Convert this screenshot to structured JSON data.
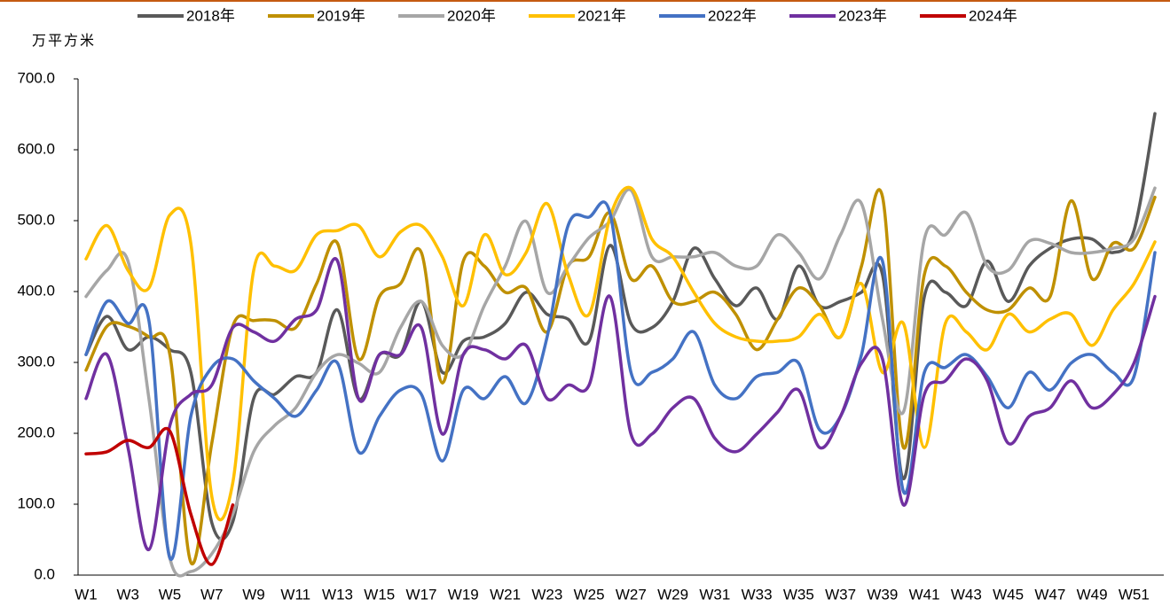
{
  "chart_data": {
    "type": "line",
    "y_axis_label": "万平方米",
    "categories": [
      "W1",
      null,
      "W3",
      null,
      "W5",
      null,
      "W7",
      null,
      "W9",
      null,
      "W11",
      null,
      "W13",
      null,
      "W15",
      null,
      "W17",
      null,
      "W19",
      null,
      "W21",
      null,
      "W23",
      null,
      "W25",
      null,
      "W27",
      null,
      "W29",
      null,
      "W31",
      null,
      "W33",
      null,
      "W35",
      null,
      "W37",
      null,
      "W39",
      null,
      "W41",
      null,
      "W43",
      null,
      "W45",
      null,
      "W47",
      null,
      "W49",
      null,
      "W51",
      null
    ],
    "series": [
      {
        "name": "2018年",
        "color": "#595959",
        "values": [
          311,
          365,
          318,
          336,
          318,
          286,
          74,
          75,
          249,
          255,
          280,
          286,
          374,
          249,
          311,
          311,
          386,
          286,
          330,
          336,
          355,
          399,
          368,
          361,
          330,
          465,
          355,
          349,
          386,
          461,
          418,
          380,
          405,
          361,
          436,
          380,
          386,
          399,
          424,
          136,
          393,
          399,
          380,
          443,
          386,
          436,
          461,
          474,
          474,
          455,
          486,
          651
        ]
      },
      {
        "name": "2019年",
        "color": "#bf9000",
        "values": [
          289,
          351,
          351,
          336,
          311,
          18,
          186,
          351,
          359,
          359,
          349,
          411,
          468,
          305,
          393,
          411,
          455,
          271,
          443,
          436,
          399,
          405,
          343,
          436,
          449,
          511,
          418,
          436,
          386,
          386,
          399,
          368,
          318,
          361,
          405,
          380,
          336,
          436,
          534,
          180,
          424,
          436,
          399,
          374,
          374,
          405,
          393,
          528,
          418,
          468,
          461,
          533
        ]
      },
      {
        "name": "2020年",
        "color": "#a6a6a6",
        "values": [
          393,
          430,
          443,
          249,
          24,
          5,
          30,
          86,
          174,
          211,
          236,
          286,
          311,
          299,
          286,
          349,
          386,
          324,
          311,
          380,
          436,
          499,
          399,
          436,
          476,
          499,
          543,
          449,
          449,
          449,
          455,
          436,
          436,
          480,
          455,
          418,
          480,
          524,
          361,
          230,
          474,
          480,
          511,
          436,
          430,
          471,
          468,
          455,
          455,
          461,
          474,
          546
        ]
      },
      {
        "name": "2021年",
        "color": "#ffc000",
        "values": [
          446,
          493,
          430,
          405,
          508,
          468,
          111,
          130,
          430,
          436,
          430,
          480,
          486,
          493,
          449,
          484,
          493,
          449,
          380,
          480,
          424,
          455,
          524,
          424,
          368,
          505,
          546,
          474,
          449,
          399,
          355,
          336,
          330,
          330,
          336,
          368,
          336,
          411,
          286,
          355,
          180,
          355,
          343,
          318,
          368,
          343,
          361,
          368,
          324,
          374,
          411,
          470
        ]
      },
      {
        "name": "2022年",
        "color": "#4472c4",
        "values": [
          311,
          386,
          355,
          359,
          24,
          224,
          293,
          305,
          274,
          249,
          224,
          261,
          299,
          174,
          224,
          261,
          255,
          161,
          261,
          249,
          280,
          243,
          336,
          493,
          505,
          511,
          286,
          286,
          305,
          343,
          268,
          249,
          280,
          286,
          299,
          205,
          224,
          311,
          443,
          118,
          286,
          293,
          311,
          280,
          236,
          286,
          261,
          299,
          311,
          286,
          280,
          455
        ]
      },
      {
        "name": "2023年",
        "color": "#7030a0",
        "values": [
          249,
          311,
          180,
          36,
          211,
          255,
          268,
          349,
          343,
          330,
          361,
          374,
          443,
          249,
          311,
          311,
          349,
          199,
          311,
          318,
          305,
          324,
          249,
          268,
          268,
          393,
          199,
          199,
          236,
          249,
          193,
          174,
          199,
          230,
          261,
          180,
          224,
          299,
          305,
          99,
          255,
          274,
          305,
          274,
          186,
          224,
          236,
          274,
          236,
          255,
          299,
          393
        ]
      },
      {
        "name": "2024年",
        "color": "#c00000",
        "values": [
          171,
          174,
          190,
          180,
          203,
          86,
          15,
          99,
          null,
          null,
          null,
          null,
          null,
          null,
          null,
          null,
          null,
          null,
          null,
          null,
          null,
          null,
          null,
          null,
          null,
          null,
          null,
          null,
          null,
          null,
          null,
          null,
          null,
          null,
          null,
          null,
          null,
          null,
          null,
          null,
          null,
          null,
          null,
          null,
          null,
          null,
          null,
          null,
          null,
          null,
          null,
          null
        ]
      }
    ],
    "ylim": [
      0,
      700
    ],
    "yticks": [
      {
        "value": 0,
        "label": "0.0"
      },
      {
        "value": 100,
        "label": "100.0"
      },
      {
        "value": 200,
        "label": "200.0"
      },
      {
        "value": 300,
        "label": "300.0"
      },
      {
        "value": 400,
        "label": "400.0"
      },
      {
        "value": 500,
        "label": "500.0"
      },
      {
        "value": 600,
        "label": "600.0"
      },
      {
        "value": 700,
        "label": "700.0"
      }
    ],
    "grid": false,
    "legend": "top"
  }
}
